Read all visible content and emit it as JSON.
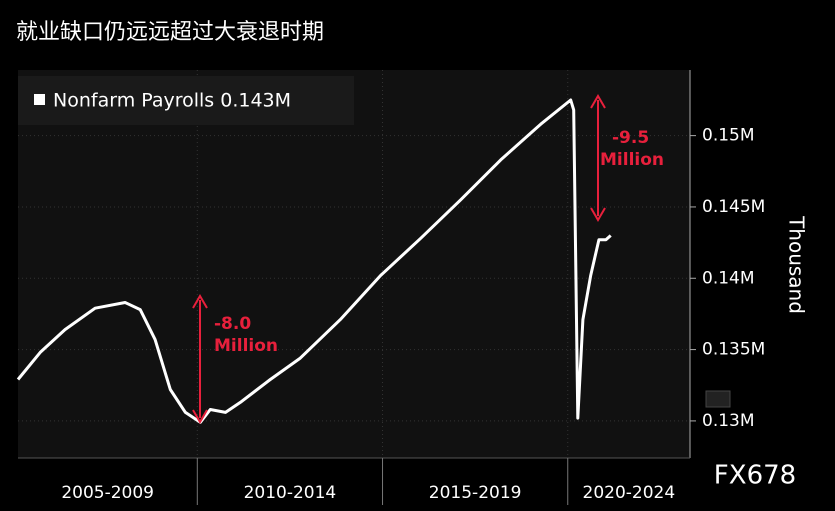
{
  "chart_data": {
    "type": "line",
    "title": "就业缺口仍远远超过大衰退时期",
    "y_axis_label": "Thousand",
    "watermark": "FX678",
    "series": [
      {
        "name": "Nonfarm Payrolls 0.143M",
        "color": "#ffffff",
        "x": [
          2005.16,
          2005.76,
          2006.43,
          2007.24,
          2008.05,
          2008.46,
          2008.86,
          2009.27,
          2009.68,
          2010.08,
          2010.35,
          2010.76,
          2011.16,
          2011.97,
          2012.78,
          2013.86,
          2014.95,
          2016.03,
          2017.11,
          2018.19,
          2019.27,
          2020.08,
          2020.16,
          2020.27,
          2020.41,
          2020.62,
          2020.84,
          2021.03,
          2021.16
        ],
        "values": [
          0.1329,
          0.1348,
          0.1364,
          0.1379,
          0.1383,
          0.1378,
          0.1357,
          0.1322,
          0.1306,
          0.1299,
          0.1308,
          0.1306,
          0.1313,
          0.1329,
          0.1344,
          0.1371,
          0.1402,
          0.1428,
          0.1455,
          0.1483,
          0.1508,
          0.1525,
          0.1518,
          0.1302,
          0.1371,
          0.1402,
          0.1427,
          0.1427,
          0.143
        ]
      }
    ],
    "xlim": [
      2005.16,
      2023.3
    ],
    "xticks": [
      2010,
      2015,
      2020
    ],
    "x_band_labels": [
      "2005-2009",
      "2010-2014",
      "2015-2019",
      "2020-2024"
    ],
    "ylim": [
      0.1274,
      0.1546
    ],
    "yticks": [
      {
        "value": 0.13,
        "label": "0.13M"
      },
      {
        "value": 0.135,
        "label": "0.135M"
      },
      {
        "value": 0.14,
        "label": "0.14M"
      },
      {
        "value": 0.145,
        "label": "0.145M"
      },
      {
        "value": 0.15,
        "label": "0.15M"
      }
    ],
    "grid": true,
    "annotations": [
      {
        "line1": "-8.0",
        "line2": "Million",
        "color": "#e8203c"
      },
      {
        "line1": "-9.5",
        "line2": "Million",
        "color": "#e8203c"
      }
    ]
  }
}
